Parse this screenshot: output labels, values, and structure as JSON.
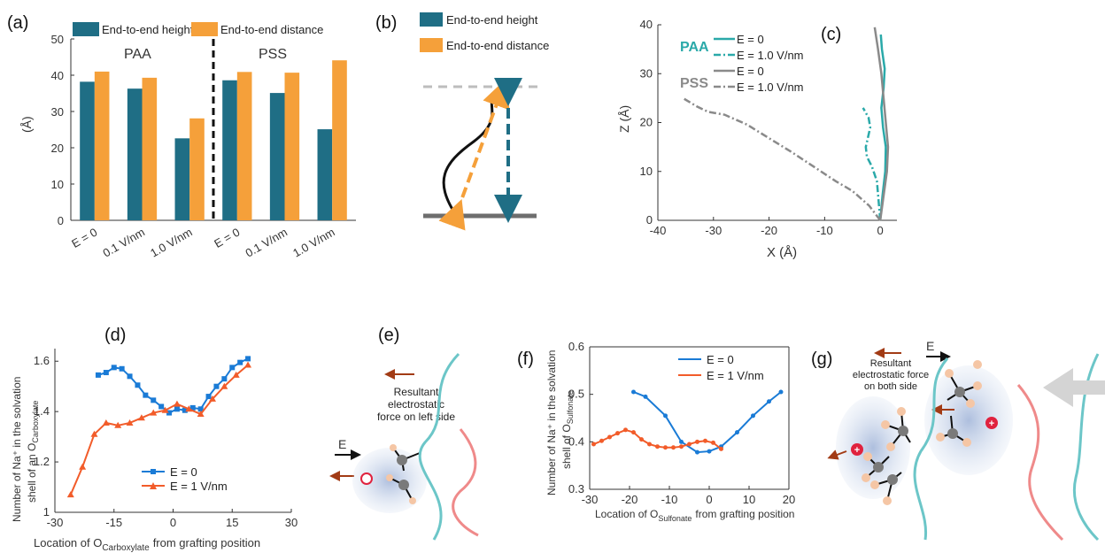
{
  "colors": {
    "teal": "#1f6e85",
    "orange": "#f5a03a",
    "blue": "#1a7bd6",
    "red": "#f25c2a",
    "cyan": "#2aa9a9",
    "gray": "#8a8a8a",
    "pink": "#ef8a8a"
  },
  "panels": {
    "a": {
      "label": "(a)",
      "group_left": "PAA",
      "group_right": "PSS"
    },
    "b": {
      "label": "(b)",
      "legend_height": "End-to-end height",
      "legend_distance": "End-to-end distance"
    },
    "c": {
      "label": "(c)",
      "paa": "PAA",
      "pss": "PSS"
    },
    "d": {
      "label": "(d)"
    },
    "e": {
      "label": "(e)",
      "force_text_1": "Resultant",
      "force_text_2": "electrostatic",
      "force_text_3": "force on left side",
      "field": "E"
    },
    "f": {
      "label": "(f)"
    },
    "g": {
      "label": "(g)",
      "force_text_1": "Resultant",
      "force_text_2": "electrostatic force",
      "force_text_3": "on both side",
      "field": "E"
    }
  },
  "chart_data": [
    {
      "id": "a",
      "type": "bar",
      "categories": [
        "E = 0",
        "0.1 V/nm",
        "1.0 V/nm",
        "E = 0",
        "0.1 V/nm",
        "1.0 V/nm"
      ],
      "series": [
        {
          "name": "End-to-end height",
          "values": [
            38.2,
            36.3,
            22.6,
            38.6,
            35.1,
            25.1
          ]
        },
        {
          "name": "End-to-end distance",
          "values": [
            41.0,
            39.3,
            28.1,
            40.9,
            40.7,
            44.1
          ]
        }
      ],
      "ylabel": "(Å)",
      "ylim": [
        0,
        50
      ],
      "yticks": [
        "0",
        "10",
        "20",
        "30",
        "40",
        "50"
      ]
    },
    {
      "id": "c",
      "type": "line",
      "xlabel": "X (Å)",
      "ylabel": "Z (Å)",
      "xlim": [
        -40,
        3
      ],
      "ylim": [
        0,
        40
      ],
      "xticks": [
        "-40",
        "-30",
        "-20",
        "-10",
        "0"
      ],
      "yticks": [
        "0",
        "10",
        "20",
        "30",
        "40"
      ],
      "series": [
        {
          "name": "E = 0",
          "group": "PAA",
          "x": [
            0,
            0.4,
            0.9,
            1.0,
            0.5,
            0.2,
            0.6,
            0.8,
            0.3,
            0.1
          ],
          "y": [
            0,
            5,
            10,
            15,
            19,
            23,
            27,
            31,
            35,
            38
          ]
        },
        {
          "name": "E = 1.0 V/nm",
          "group": "PAA",
          "x": [
            0,
            -0.3,
            -0.6,
            -1.5,
            -2.4,
            -2.6,
            -2.2,
            -1.8,
            -2.1,
            -3.1
          ],
          "y": [
            0,
            4,
            8,
            11,
            13,
            15,
            17,
            19,
            21,
            23
          ]
        },
        {
          "name": "E = 0",
          "group": "PSS",
          "x": [
            0,
            0.6,
            1.2,
            1.4,
            1.0,
            0.6,
            0.2,
            -0.4,
            -1.0
          ],
          "y": [
            0,
            5,
            10,
            15,
            20,
            25,
            30,
            35,
            39.5
          ]
        },
        {
          "name": "E = 1.0 V/nm",
          "group": "PSS",
          "x": [
            0,
            -2,
            -5,
            -8,
            -12,
            -16,
            -20,
            -24,
            -28,
            -31,
            -33,
            -35.5
          ],
          "y": [
            0,
            3,
            6,
            8,
            11,
            14,
            16.8,
            19.6,
            21.6,
            22.2,
            23.3,
            25
          ]
        }
      ]
    },
    {
      "id": "d",
      "type": "line",
      "xlabel": "Location of O",
      "xlabel_sub": "Carboxylate",
      "xlabel_tail": "from grafting position",
      "ylabel_1": "Number of Na⁺ in the solvation",
      "ylabel_2": "shell of an O",
      "ylabel_sub": "Carboxylate",
      "xlim": [
        -30,
        30
      ],
      "ylim": [
        1,
        1.65
      ],
      "xticks": [
        "-30",
        "-15",
        "0",
        "15",
        "30"
      ],
      "yticks": [
        "1",
        "1.2",
        "1.4",
        "1.6"
      ],
      "series": [
        {
          "name": "E = 0",
          "x": [
            -19,
            -17,
            -15,
            -13,
            -11,
            -9,
            -7,
            -5,
            -3,
            -1,
            1,
            3,
            5,
            7,
            9,
            11,
            13,
            15,
            17,
            19
          ],
          "y": [
            1.545,
            1.555,
            1.575,
            1.57,
            1.54,
            1.505,
            1.465,
            1.445,
            1.42,
            1.395,
            1.41,
            1.405,
            1.415,
            1.41,
            1.46,
            1.5,
            1.53,
            1.575,
            1.595,
            1.61
          ]
        },
        {
          "name": "E = 1 V/nm",
          "x": [
            -26,
            -23,
            -20,
            -17,
            -14,
            -11,
            -8,
            -5,
            -2,
            1,
            4,
            7,
            10,
            13,
            16,
            19
          ],
          "y": [
            1.07,
            1.18,
            1.31,
            1.355,
            1.345,
            1.355,
            1.375,
            1.395,
            1.405,
            1.43,
            1.41,
            1.39,
            1.45,
            1.5,
            1.545,
            1.585
          ]
        }
      ]
    },
    {
      "id": "f",
      "type": "line",
      "xlabel": "Location of O",
      "xlabel_sub": "Sulfonate",
      "xlabel_tail": "from grafting position",
      "ylabel_1": "Number of Na⁺ in the solvation",
      "ylabel_2": "shell of O",
      "ylabel_sub": "Sulfonate",
      "xlim": [
        -30,
        20
      ],
      "ylim": [
        0.3,
        0.6
      ],
      "xticks": [
        "-30",
        "-20",
        "-10",
        "0",
        "10",
        "20"
      ],
      "yticks": [
        "0.3",
        "0.4",
        "0.5",
        "0.6"
      ],
      "series": [
        {
          "name": "E = 0",
          "x": [
            -19,
            -16,
            -11,
            -7,
            -3,
            0,
            3,
            7,
            11,
            15,
            18
          ],
          "y": [
            0.505,
            0.495,
            0.455,
            0.4,
            0.378,
            0.38,
            0.39,
            0.42,
            0.455,
            0.485,
            0.505
          ]
        },
        {
          "name": "E = 1 V/nm",
          "x": [
            -29,
            -27,
            -25,
            -23,
            -21,
            -19,
            -17,
            -15,
            -13,
            -11,
            -9,
            -7,
            -5,
            -3,
            -1,
            1,
            3
          ],
          "y": [
            0.395,
            0.402,
            0.41,
            0.418,
            0.425,
            0.42,
            0.405,
            0.395,
            0.39,
            0.388,
            0.388,
            0.39,
            0.395,
            0.4,
            0.402,
            0.398,
            0.385
          ]
        }
      ]
    }
  ]
}
